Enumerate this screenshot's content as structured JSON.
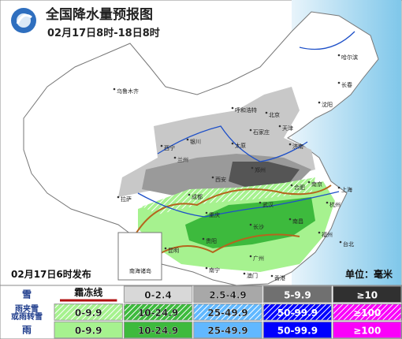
{
  "header": {
    "title": "全国降水量预报图",
    "subtitle": "02月17日8时-18日8时"
  },
  "issued": "02月17日6时发布",
  "unit": "单位：毫米",
  "inset_label": "南海诸岛",
  "cities": [
    "乌鲁木齐",
    "哈尔滨",
    "长春",
    "沈阳",
    "北京",
    "天津",
    "呼和浩特",
    "石家庄",
    "太原",
    "济南",
    "银川",
    "西宁",
    "兰州",
    "郑州",
    "西安",
    "合肥",
    "南京",
    "上海",
    "武汉",
    "杭州",
    "成都",
    "重庆",
    "长沙",
    "南昌",
    "拉萨",
    "贵阳",
    "福州",
    "台北",
    "昆明",
    "南宁",
    "广州",
    "香港",
    "澳门"
  ],
  "legend": {
    "frost_line": "霜冻线",
    "rows": [
      {
        "label": [
          "雪"
        ],
        "items": [
          "0-2.4",
          "2.5-4.9",
          "5-9.9",
          "≥10"
        ]
      },
      {
        "label": [
          "雨夹雪",
          "或雨转雪"
        ],
        "items": [
          "0-9.9",
          "10-24.9",
          "25-49.9",
          "50-99.9",
          "≥100"
        ]
      },
      {
        "label": [
          "雨"
        ],
        "items": [
          "0-9.9",
          "10-24.9",
          "25-49.9",
          "50-99.9",
          "≥100"
        ]
      }
    ]
  }
}
